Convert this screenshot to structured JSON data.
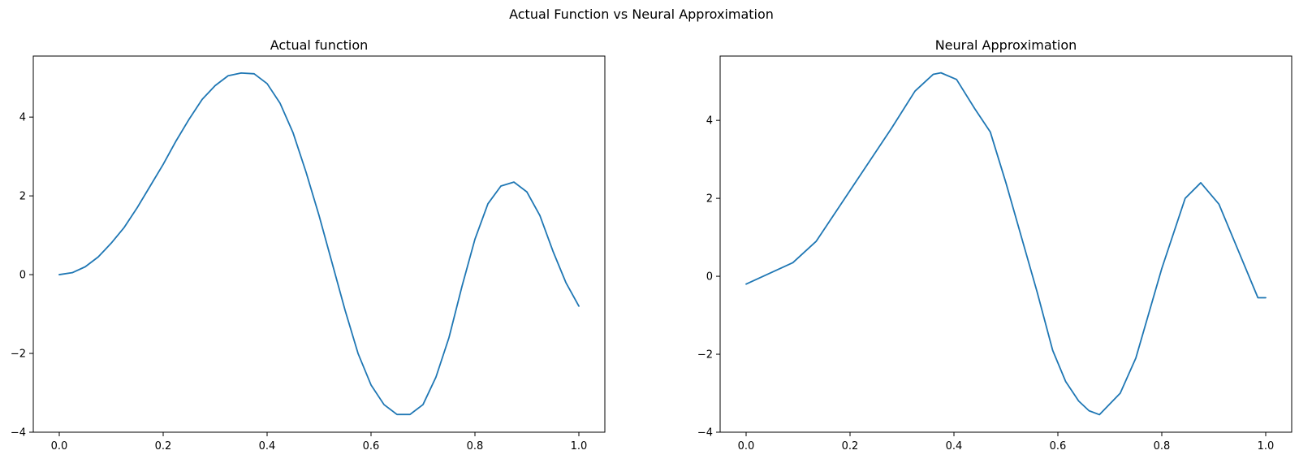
{
  "figure": {
    "suptitle": "Actual Function vs Neural Approximation"
  },
  "chart_data": [
    {
      "type": "line",
      "title": "Actual function",
      "xlabel": "",
      "ylabel": "",
      "xlim": [
        -0.05,
        1.05
      ],
      "ylim": [
        -4,
        5.55
      ],
      "xticks": [
        0.0,
        0.2,
        0.4,
        0.6,
        0.8,
        1.0
      ],
      "xtick_labels": [
        "0.0",
        "0.2",
        "0.4",
        "0.6",
        "0.8",
        "1.0"
      ],
      "yticks": [
        -4,
        -2,
        0,
        2,
        4
      ],
      "ytick_labels": [
        "−4",
        "−2",
        "0",
        "2",
        "4"
      ],
      "grid": false,
      "series": [
        {
          "color": "#1f77b4",
          "x": [
            0.0,
            0.025,
            0.05,
            0.075,
            0.1,
            0.125,
            0.15,
            0.175,
            0.2,
            0.225,
            0.25,
            0.275,
            0.3,
            0.325,
            0.35,
            0.375,
            0.4,
            0.425,
            0.45,
            0.475,
            0.5,
            0.525,
            0.55,
            0.575,
            0.6,
            0.625,
            0.65,
            0.675,
            0.7,
            0.725,
            0.75,
            0.775,
            0.8,
            0.825,
            0.85,
            0.875,
            0.9,
            0.925,
            0.95,
            0.975,
            1.0
          ],
          "y": [
            0.0,
            0.05,
            0.2,
            0.45,
            0.8,
            1.2,
            1.7,
            2.25,
            2.8,
            3.4,
            3.95,
            4.45,
            4.8,
            5.05,
            5.12,
            5.1,
            4.85,
            4.35,
            3.6,
            2.6,
            1.5,
            0.3,
            -0.9,
            -2.0,
            -2.8,
            -3.3,
            -3.55,
            -3.55,
            -3.3,
            -2.6,
            -1.6,
            -0.3,
            0.9,
            1.8,
            2.25,
            2.35,
            2.1,
            1.5,
            0.6,
            -0.2,
            -0.8
          ]
        }
      ]
    },
    {
      "type": "line",
      "title": "Neural Approximation",
      "xlabel": "",
      "ylabel": "",
      "xlim": [
        -0.05,
        1.05
      ],
      "ylim": [
        -4,
        5.65
      ],
      "xticks": [
        0.0,
        0.2,
        0.4,
        0.6,
        0.8,
        1.0
      ],
      "xtick_labels": [
        "0.0",
        "0.2",
        "0.4",
        "0.6",
        "0.8",
        "1.0"
      ],
      "yticks": [
        -4,
        -2,
        0,
        2,
        4
      ],
      "ytick_labels": [
        "−4",
        "−2",
        "0",
        "2",
        "4"
      ],
      "grid": false,
      "series": [
        {
          "color": "#1f77b4",
          "x": [
            0.0,
            0.09,
            0.135,
            0.16,
            0.2,
            0.24,
            0.28,
            0.325,
            0.36,
            0.375,
            0.405,
            0.44,
            0.47,
            0.5,
            0.53,
            0.56,
            0.59,
            0.615,
            0.64,
            0.66,
            0.68,
            0.72,
            0.75,
            0.8,
            0.845,
            0.875,
            0.91,
            0.985,
            1.0
          ],
          "y": [
            -0.2,
            0.35,
            0.9,
            1.4,
            2.2,
            3.0,
            3.8,
            4.75,
            5.18,
            5.22,
            5.05,
            4.3,
            3.7,
            2.4,
            1.0,
            -0.4,
            -1.9,
            -2.7,
            -3.2,
            -3.45,
            -3.55,
            -3.0,
            -2.1,
            0.2,
            2.0,
            2.4,
            1.85,
            -0.55,
            -0.55
          ]
        }
      ]
    }
  ]
}
